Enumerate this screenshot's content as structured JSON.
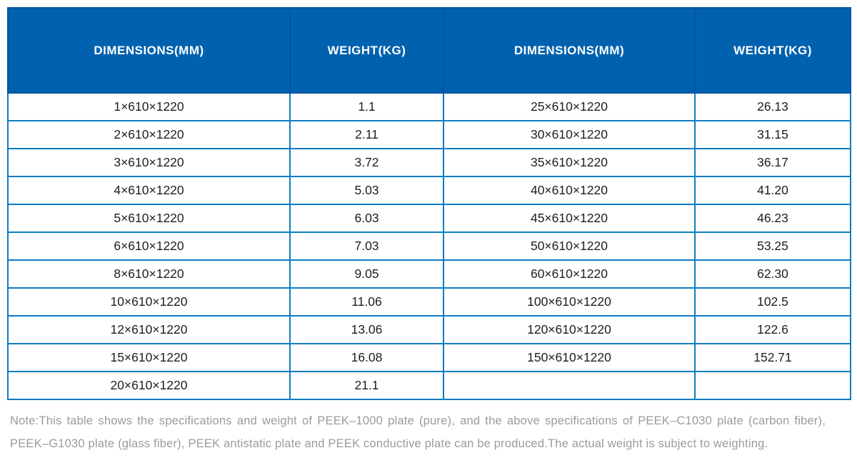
{
  "table": {
    "columns": [
      "DIMENSIONS(MM)",
      "WEIGHT(KG)",
      "DIMENSIONS(MM)",
      "WEIGHT(KG)"
    ],
    "rows": [
      [
        "1×610×1220",
        "1.1",
        "25×610×1220",
        "26.13"
      ],
      [
        "2×610×1220",
        "2.11",
        "30×610×1220",
        "31.15"
      ],
      [
        "3×610×1220",
        "3.72",
        "35×610×1220",
        "36.17"
      ],
      [
        "4×610×1220",
        "5.03",
        "40×610×1220",
        "41.20"
      ],
      [
        "5×610×1220",
        "6.03",
        "45×610×1220",
        "46.23"
      ],
      [
        "6×610×1220",
        "7.03",
        "50×610×1220",
        "53.25"
      ],
      [
        "8×610×1220",
        "9.05",
        "60×610×1220",
        "62.30"
      ],
      [
        "10×610×1220",
        "11.06",
        "100×610×1220",
        "102.5"
      ],
      [
        "12×610×1220",
        "13.06",
        "120×610×1220",
        "122.6"
      ],
      [
        "15×610×1220",
        "16.08",
        "150×610×1220",
        "152.71"
      ],
      [
        "20×610×1220",
        "21.1",
        "",
        ""
      ]
    ]
  },
  "note": {
    "line1": "Note:This table shows the specifications and weight of PEEK–1000 plate (pure), and the above specifications of PEEK–C1030 plate (carbon fiber),",
    "line2": "PEEK–G1030 plate (glass fiber), PEEK antistatic plate and PEEK conductive plate can be produced.The actual weight is subject to weighting."
  },
  "colors": {
    "page_bg": "#ffffff",
    "header_bg": "#0061af",
    "header_divider": "#0254a3",
    "header_text": "#ffffff",
    "grid_border": "#0e7dc2",
    "cell_text": "#1e1e1e",
    "note_text": "#9b9b9b"
  }
}
